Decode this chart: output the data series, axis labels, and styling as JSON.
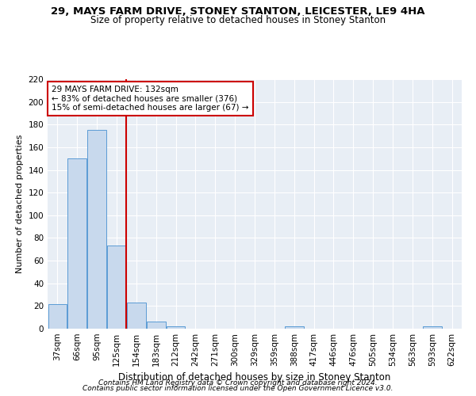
{
  "title1": "29, MAYS FARM DRIVE, STONEY STANTON, LEICESTER, LE9 4HA",
  "title2": "Size of property relative to detached houses in Stoney Stanton",
  "xlabel": "Distribution of detached houses by size in Stoney Stanton",
  "ylabel": "Number of detached properties",
  "categories": [
    "37sqm",
    "66sqm",
    "95sqm",
    "125sqm",
    "154sqm",
    "183sqm",
    "212sqm",
    "242sqm",
    "271sqm",
    "300sqm",
    "329sqm",
    "359sqm",
    "388sqm",
    "417sqm",
    "446sqm",
    "476sqm",
    "505sqm",
    "534sqm",
    "563sqm",
    "593sqm",
    "622sqm"
  ],
  "values": [
    22,
    150,
    175,
    73,
    23,
    6,
    2,
    0,
    0,
    0,
    0,
    0,
    2,
    0,
    0,
    0,
    0,
    0,
    0,
    2,
    0
  ],
  "bar_color": "#c8d9ed",
  "bar_edge_color": "#5b9bd5",
  "vline_x": 3.5,
  "vline_color": "#cc0000",
  "annotation_text": "29 MAYS FARM DRIVE: 132sqm\n← 83% of detached houses are smaller (376)\n15% of semi-detached houses are larger (67) →",
  "annotation_box_color": "white",
  "annotation_box_edge": "#cc0000",
  "ylim": [
    0,
    220
  ],
  "yticks": [
    0,
    20,
    40,
    60,
    80,
    100,
    120,
    140,
    160,
    180,
    200,
    220
  ],
  "bg_color": "#e8eef5",
  "grid_color": "#d0d8e4",
  "footer1": "Contains HM Land Registry data © Crown copyright and database right 2024.",
  "footer2": "Contains public sector information licensed under the Open Government Licence v3.0.",
  "title1_fontsize": 9.5,
  "title2_fontsize": 8.5,
  "xlabel_fontsize": 8.5,
  "ylabel_fontsize": 8,
  "tick_fontsize": 7.5,
  "annot_fontsize": 7.5,
  "footer_fontsize": 6.5
}
